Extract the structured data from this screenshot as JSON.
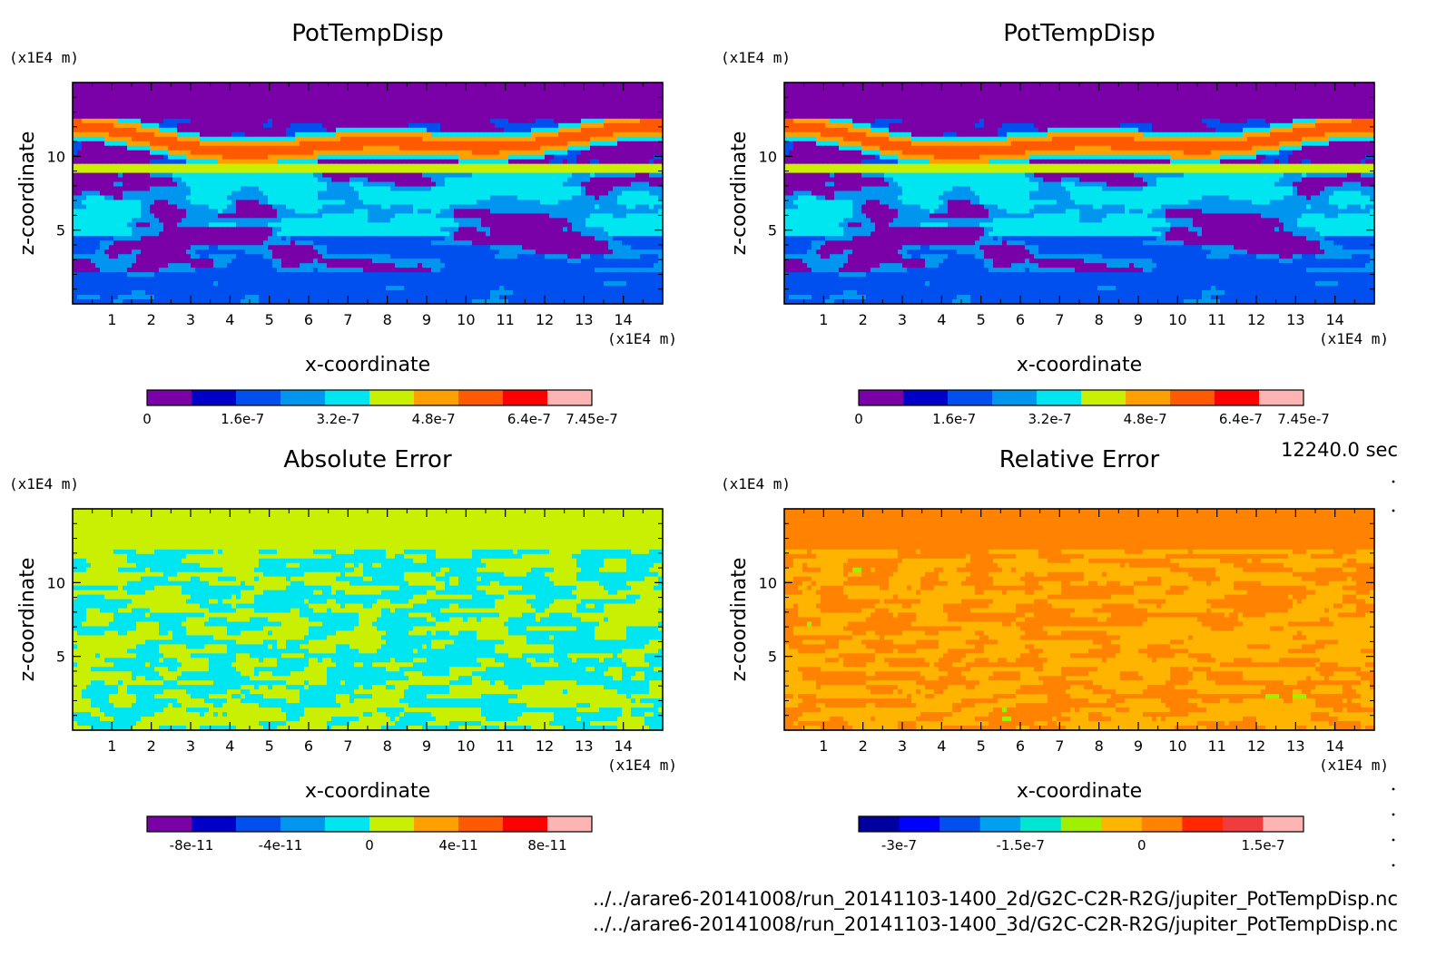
{
  "time_label": "12240.0 sec",
  "files": [
    "../../arare6-20141008/run_20141103-1400_2d/G2C-C2R-R2G/jupiter_PotTempDisp.nc",
    "../../arare6-20141008/run_20141103-1400_3d/G2C-C2R-R2G/jupiter_PotTempDisp.nc"
  ],
  "chart_data": [
    {
      "type": "heatmap",
      "title": "PotTempDisp",
      "xlabel": "x-coordinate",
      "ylabel": "z-coordinate",
      "x_unit": "(x1E4 m)",
      "y_unit": "(x1E4 m)",
      "xlim": [
        0,
        15
      ],
      "ylim": [
        0,
        15
      ],
      "x_ticks": [
        "1",
        "2",
        "3",
        "4",
        "5",
        "6",
        "7",
        "8",
        "9",
        "10",
        "11",
        "12",
        "13",
        "14"
      ],
      "y_ticks": [
        "5",
        "10"
      ],
      "field": "pottemp",
      "colorbar": {
        "colors": [
          "#7a00a8",
          "#0000c8",
          "#0050f0",
          "#0096f0",
          "#00e6f0",
          "#c8f000",
          "#ffa000",
          "#ff5a00",
          "#ff0000",
          "#ffb4b4"
        ],
        "labels": [
          "0",
          "1.6e-7",
          "3.2e-7",
          "4.8e-7",
          "6.4e-7",
          "7.45e-7"
        ],
        "range": [
          0,
          7.45e-07
        ]
      }
    },
    {
      "type": "heatmap",
      "title": "PotTempDisp",
      "xlabel": "x-coordinate",
      "ylabel": "z-coordinate",
      "x_unit": "(x1E4 m)",
      "y_unit": "(x1E4 m)",
      "xlim": [
        0,
        15
      ],
      "ylim": [
        0,
        15
      ],
      "x_ticks": [
        "1",
        "2",
        "3",
        "4",
        "5",
        "6",
        "7",
        "8",
        "9",
        "10",
        "11",
        "12",
        "13",
        "14"
      ],
      "y_ticks": [
        "5",
        "10"
      ],
      "field": "pottemp",
      "colorbar": {
        "colors": [
          "#7a00a8",
          "#0000c8",
          "#0050f0",
          "#0096f0",
          "#00e6f0",
          "#c8f000",
          "#ffa000",
          "#ff5a00",
          "#ff0000",
          "#ffb4b4"
        ],
        "labels": [
          "0",
          "1.6e-7",
          "3.2e-7",
          "4.8e-7",
          "6.4e-7",
          "7.45e-7"
        ],
        "range": [
          0,
          7.45e-07
        ]
      }
    },
    {
      "type": "heatmap",
      "title": "Absolute Error",
      "xlabel": "x-coordinate",
      "ylabel": "z-coordinate",
      "x_unit": "(x1E4 m)",
      "y_unit": "(x1E4 m)",
      "xlim": [
        0,
        15
      ],
      "ylim": [
        0,
        15
      ],
      "x_ticks": [
        "1",
        "2",
        "3",
        "4",
        "5",
        "6",
        "7",
        "8",
        "9",
        "10",
        "11",
        "12",
        "13",
        "14"
      ],
      "y_ticks": [
        "5",
        "10"
      ],
      "field": "abserr",
      "colorbar": {
        "colors": [
          "#7a00a8",
          "#0000c8",
          "#0050f0",
          "#0096f0",
          "#00e6f0",
          "#c8f000",
          "#ffa000",
          "#ff5a00",
          "#ff0000",
          "#ffb4b4"
        ],
        "labels": [
          "-8e-11",
          "-4e-11",
          "0",
          "4e-11",
          "8e-11"
        ],
        "range": [
          -1e-10,
          1e-10
        ]
      }
    },
    {
      "type": "heatmap",
      "title": "Relative Error",
      "xlabel": "x-coordinate",
      "ylabel": "z-coordinate",
      "x_unit": "(x1E4 m)",
      "y_unit": "(x1E4 m)",
      "xlim": [
        0,
        15
      ],
      "ylim": [
        0,
        15
      ],
      "x_ticks": [
        "1",
        "2",
        "3",
        "4",
        "5",
        "6",
        "7",
        "8",
        "9",
        "10",
        "11",
        "12",
        "13",
        "14"
      ],
      "y_ticks": [
        "5",
        "10"
      ],
      "field": "relerr",
      "colorbar": {
        "colors": [
          "#0000a0",
          "#0000ff",
          "#0050f0",
          "#00a0f0",
          "#00e6d2",
          "#a0f000",
          "#ffb400",
          "#ff8200",
          "#ff2800",
          "#f03c3c",
          "#ffb4b4"
        ],
        "labels": [
          "-3e-7",
          "-1.5e-7",
          "0",
          "1.5e-7"
        ],
        "range": [
          -3.5e-07,
          2e-07
        ]
      }
    }
  ]
}
